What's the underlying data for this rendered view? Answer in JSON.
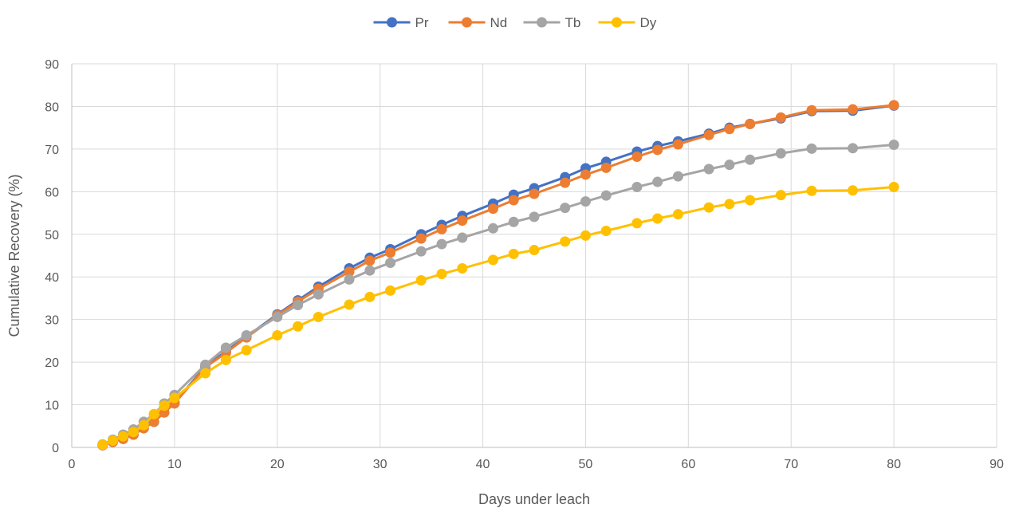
{
  "chart_data": {
    "type": "line",
    "xlabel": "Days under leach",
    "ylabel": "Cumulative Recovery (%)",
    "xlim": [
      0,
      90
    ],
    "ylim": [
      0,
      90
    ],
    "xticks": [
      0,
      10,
      20,
      30,
      40,
      50,
      60,
      70,
      80,
      90
    ],
    "yticks": [
      0,
      10,
      20,
      30,
      40,
      50,
      60,
      70,
      80,
      90
    ],
    "grid": true,
    "legend_position": "top",
    "x": [
      3,
      4,
      5,
      6,
      7,
      8,
      9,
      10,
      13,
      15,
      17,
      20,
      22,
      24,
      27,
      29,
      31,
      34,
      36,
      38,
      41,
      43,
      45,
      48,
      50,
      52,
      55,
      57,
      59,
      62,
      64,
      66,
      69,
      72,
      76,
      80
    ],
    "series": [
      {
        "name": "Pr",
        "color": "#4472c4",
        "values": [
          0.5,
          1.3,
          2.0,
          3.0,
          4.5,
          6.0,
          8.2,
          10.5,
          19.0,
          22.5,
          26.0,
          31.2,
          34.5,
          37.7,
          42.0,
          44.5,
          46.5,
          50.0,
          52.2,
          54.3,
          57.2,
          59.3,
          60.8,
          63.4,
          65.5,
          67.0,
          69.4,
          70.7,
          71.8,
          73.6,
          75.0,
          75.9,
          77.2,
          78.9,
          79.0,
          80.2
        ]
      },
      {
        "name": "Nd",
        "color": "#ed7d31",
        "values": [
          0.5,
          1.3,
          2.0,
          3.0,
          4.5,
          6.0,
          8.2,
          10.3,
          18.8,
          22.2,
          25.8,
          31.0,
          34.2,
          37.2,
          41.2,
          43.8,
          45.7,
          49.0,
          51.2,
          53.2,
          56.0,
          58.0,
          59.5,
          62.1,
          64.0,
          65.6,
          68.2,
          69.8,
          71.1,
          73.3,
          74.7,
          75.9,
          77.4,
          79.1,
          79.3,
          80.3
        ]
      },
      {
        "name": "Tb",
        "color": "#a5a5a5",
        "values": [
          0.7,
          1.8,
          3.0,
          4.2,
          6.0,
          7.8,
          10.3,
          12.3,
          19.4,
          23.4,
          26.3,
          30.6,
          33.4,
          35.9,
          39.4,
          41.5,
          43.3,
          46.0,
          47.7,
          49.2,
          51.4,
          52.9,
          54.1,
          56.2,
          57.7,
          59.1,
          61.1,
          62.3,
          63.6,
          65.3,
          66.3,
          67.5,
          69.0,
          70.1,
          70.2,
          71.0
        ]
      },
      {
        "name": "Dy",
        "color": "#ffc000",
        "values": [
          0.6,
          1.6,
          2.6,
          3.6,
          5.2,
          7.8,
          9.8,
          11.6,
          17.4,
          20.5,
          22.8,
          26.3,
          28.4,
          30.6,
          33.5,
          35.3,
          36.8,
          39.2,
          40.7,
          42.0,
          44.0,
          45.4,
          46.3,
          48.3,
          49.7,
          50.8,
          52.6,
          53.7,
          54.7,
          56.3,
          57.1,
          58.0,
          59.2,
          60.2,
          60.3,
          61.1
        ]
      }
    ]
  }
}
